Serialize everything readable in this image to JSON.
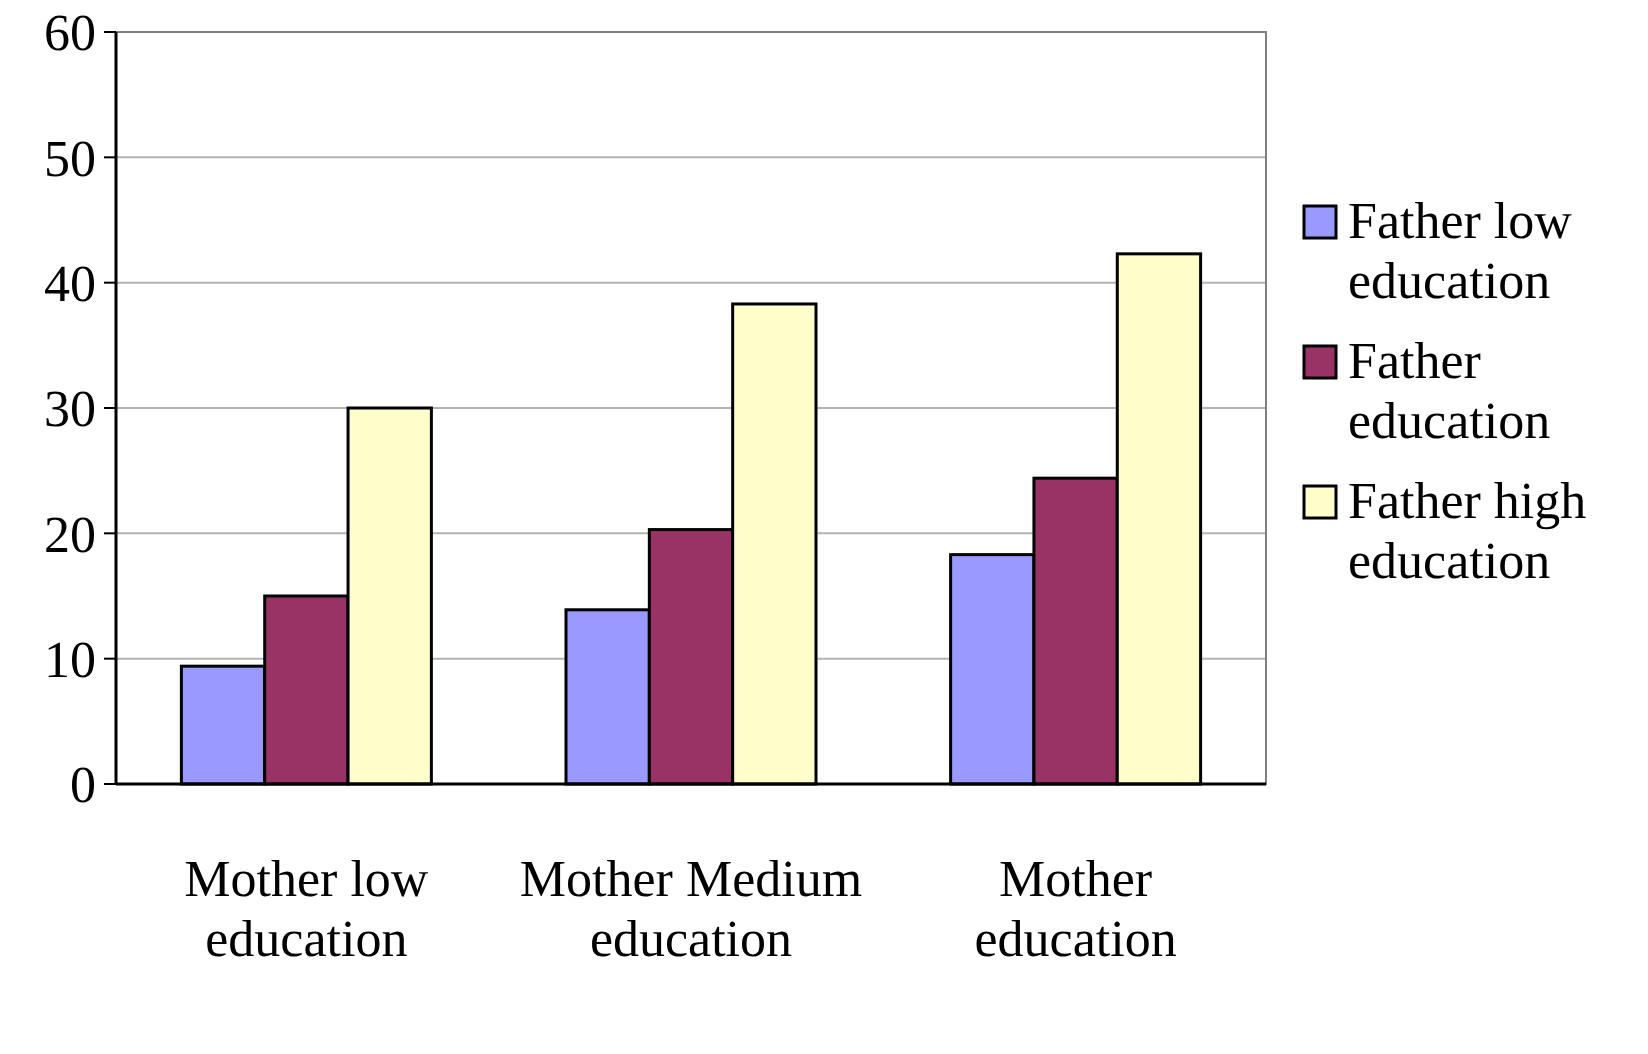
{
  "chart_data": {
    "type": "bar",
    "categories": [
      "Mother low education",
      "Mother Medium education",
      "Mother education"
    ],
    "series": [
      {
        "name": "Father low education",
        "color": "#9999ff",
        "values": [
          9.4,
          13.9,
          18.3
        ]
      },
      {
        "name": "Father education",
        "color": "#993366",
        "values": [
          15,
          20.3,
          24.4
        ]
      },
      {
        "name": "Father high education",
        "color": "#ffffcc",
        "values": [
          30,
          38.3,
          42.3
        ]
      }
    ],
    "ylim": [
      0,
      60
    ],
    "yticks": [
      0,
      10,
      20,
      30,
      40,
      50,
      60
    ],
    "grid": "y",
    "legend": "right"
  }
}
